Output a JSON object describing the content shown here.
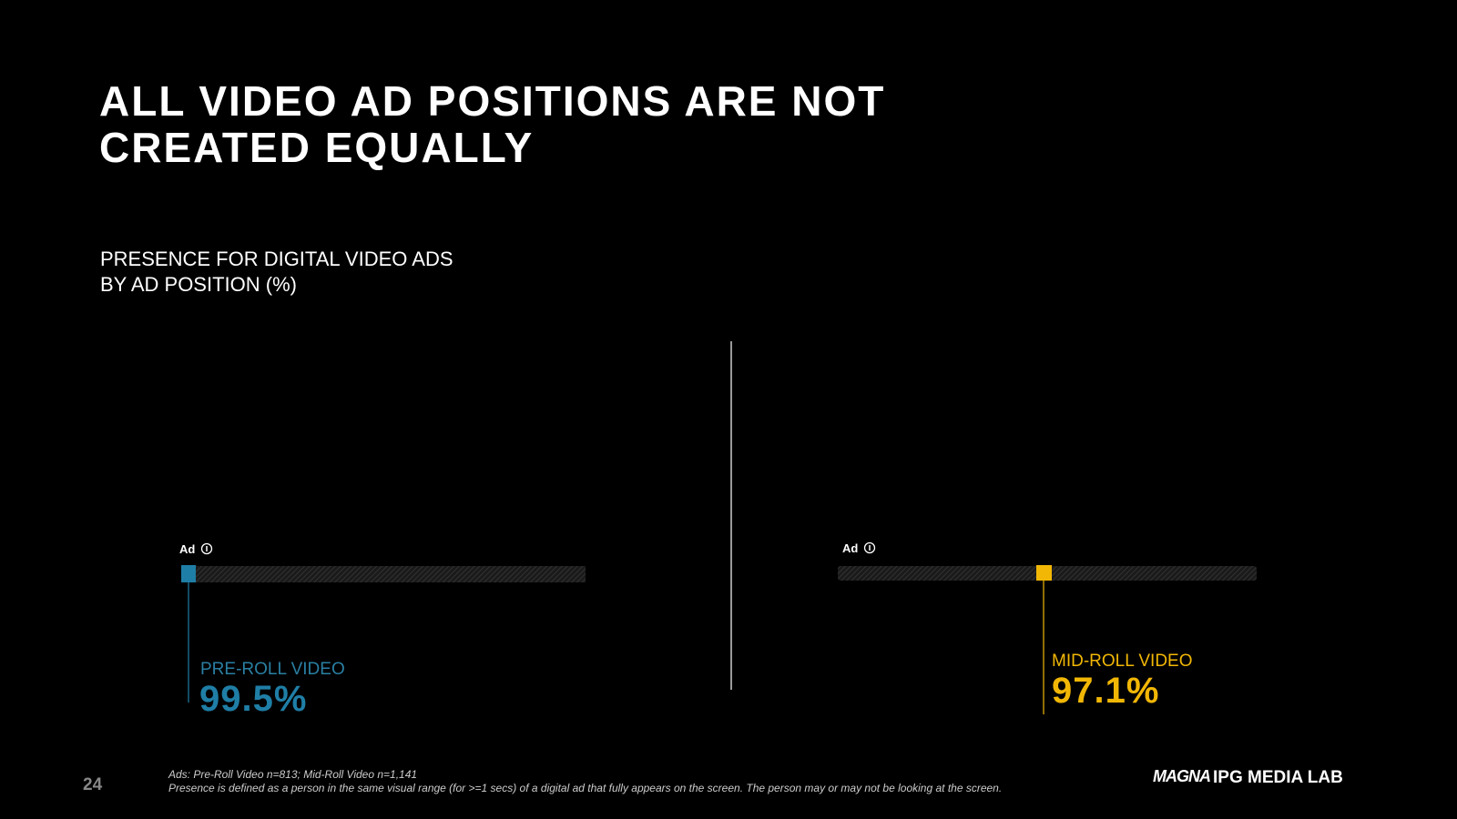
{
  "header": {
    "title_lines": [
      "ALL VIDEO AD POSITIONS ARE NOT",
      "CREATED EQUALLY"
    ],
    "subtitle_lines": [
      "PRESENCE FOR DIGITAL VIDEO ADS",
      "BY AD POSITION (%)"
    ]
  },
  "panels": [
    {
      "ad_label": "Ad",
      "label": "PRE-ROLL VIDEO",
      "value": "99.5%"
    },
    {
      "ad_label": "Ad",
      "label": "MID-ROLL VIDEO",
      "value": "97.1%"
    }
  ],
  "footer": {
    "page_number": "24",
    "notes": [
      "Ads: Pre-Roll Video n=813; Mid-Roll Video n=1,141",
      "Presence is defined as a person in the same visual range (for >=1 secs) of a digital ad that fully appears on the screen.  The person may or may not be looking at the screen."
    ],
    "logo_left": "MAGNA",
    "logo_right": "IPG MEDIA LAB"
  }
}
